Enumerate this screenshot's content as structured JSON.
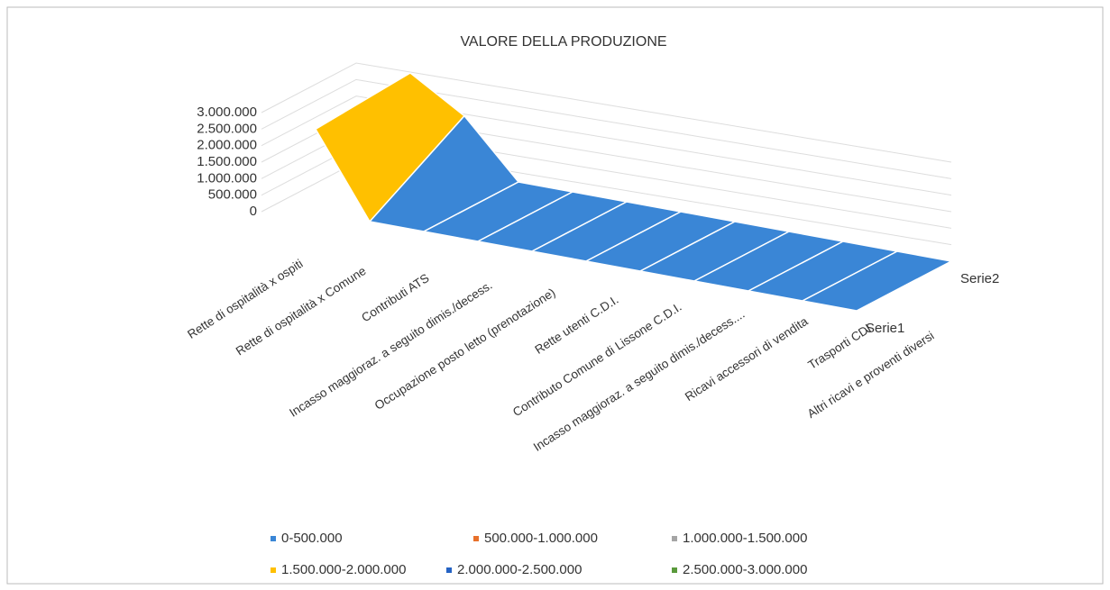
{
  "chart_data": {
    "type": "surface",
    "title": "VALORE DELLA PRODUZIONE",
    "categories": [
      "Rette di ospitalità x ospiti",
      "Rette di ospitalità x Comune",
      "Contributi ATS",
      "Incasso maggioraz. a seguito dimis./decess.",
      "Occupazione posto letto (prenotazione)",
      "Rette utenti C.D.I.",
      "Contributo Comune di Lissone C.D.I.",
      "Incasso maggioraz. a seguito dimis./decess....",
      "Ricavi accessori di vendita",
      "Trasporti CDI",
      "Altri ricavi e proventi diversi"
    ],
    "series": [
      {
        "name": "Serie1",
        "values": [
          2500000,
          0,
          0,
          0,
          0,
          0,
          0,
          0,
          0,
          0,
          0
        ]
      },
      {
        "name": "Serie2",
        "values": [
          2700000,
          1700000,
          0,
          0,
          0,
          0,
          0,
          0,
          0,
          0,
          0
        ]
      }
    ],
    "zlim": [
      0,
      3000000
    ],
    "zticks": [
      0,
      {
        "value": 500000,
        "label": "500.000"
      },
      {
        "value": 1000000,
        "label": "1.000.000"
      },
      {
        "value": 1500000,
        "label": "1.500.000"
      },
      {
        "value": 2000000,
        "label": "2.000.000"
      },
      {
        "value": 2500000,
        "label": "2.500.000"
      },
      {
        "value": 3000000,
        "label": "3.000.000"
      }
    ],
    "bands": [
      {
        "label": "0-500.000",
        "color": "#3a86d6"
      },
      {
        "label": "500.000-1.000.000",
        "color": "#e8702a"
      },
      {
        "label": "1.000.000-1.500.000",
        "color": "#a5a5a5"
      },
      {
        "label": "1.500.000-2.000.000",
        "color": "#ffc000"
      },
      {
        "label": "2.000.000-2.500.000",
        "color": "#2563c4"
      },
      {
        "label": "2.500.000-3.000.000",
        "color": "#5a9a3c"
      }
    ],
    "grid": true
  }
}
